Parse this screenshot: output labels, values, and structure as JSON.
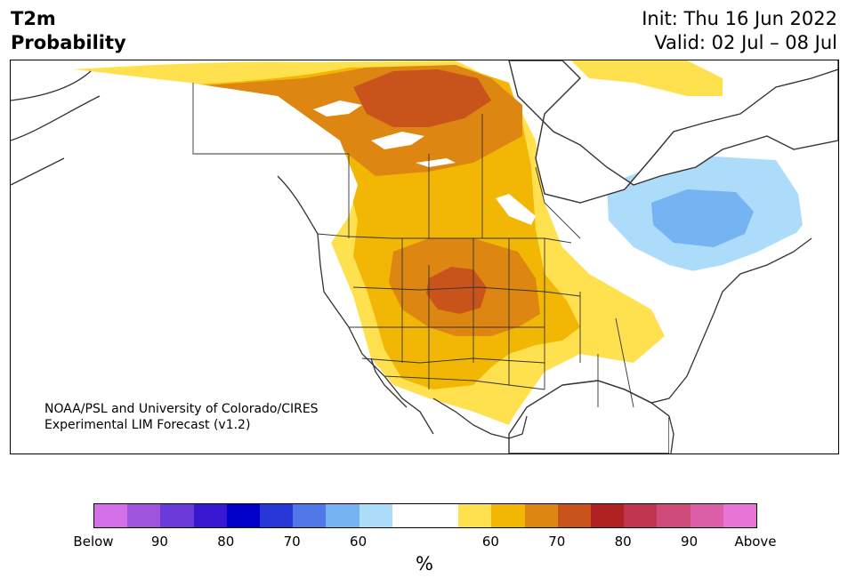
{
  "header": {
    "title_line1": "T2m",
    "title_line2": "Probability",
    "init": "Init: Thu 16 Jun 2022",
    "valid": "Valid: 02 Jul – 08 Jul"
  },
  "map": {
    "credit_line1": "NOAA/PSL and University of Colorado/CIRES",
    "credit_line2": "Experimental LIM Forecast (v1.2)",
    "colors": {
      "above_60": "#ffe14f",
      "above_65": "#f2b705",
      "above_70": "#de8612",
      "above_75": "#c9541b",
      "below_60": "#addcfb",
      "below_65": "#76b3f2",
      "water": "#ffffff",
      "land_neutral": "#ffffff",
      "border": "#333333"
    }
  },
  "colorbar": {
    "colors": [
      "#d370e8",
      "#9f54e0",
      "#6c3ad8",
      "#3818d0",
      "#0000c8",
      "#2838d8",
      "#5078e8",
      "#76b3f2",
      "#addcfb",
      "#ffffff",
      "#ffffff",
      "#ffe14f",
      "#f2b705",
      "#de8612",
      "#c9541b",
      "#b02222",
      "#c23550",
      "#cf4c7a",
      "#dc5fa8",
      "#e975d8"
    ],
    "labels": [
      "Below",
      "90",
      "80",
      "70",
      "60",
      "60",
      "70",
      "80",
      "90",
      "Above"
    ],
    "unit": "%"
  }
}
